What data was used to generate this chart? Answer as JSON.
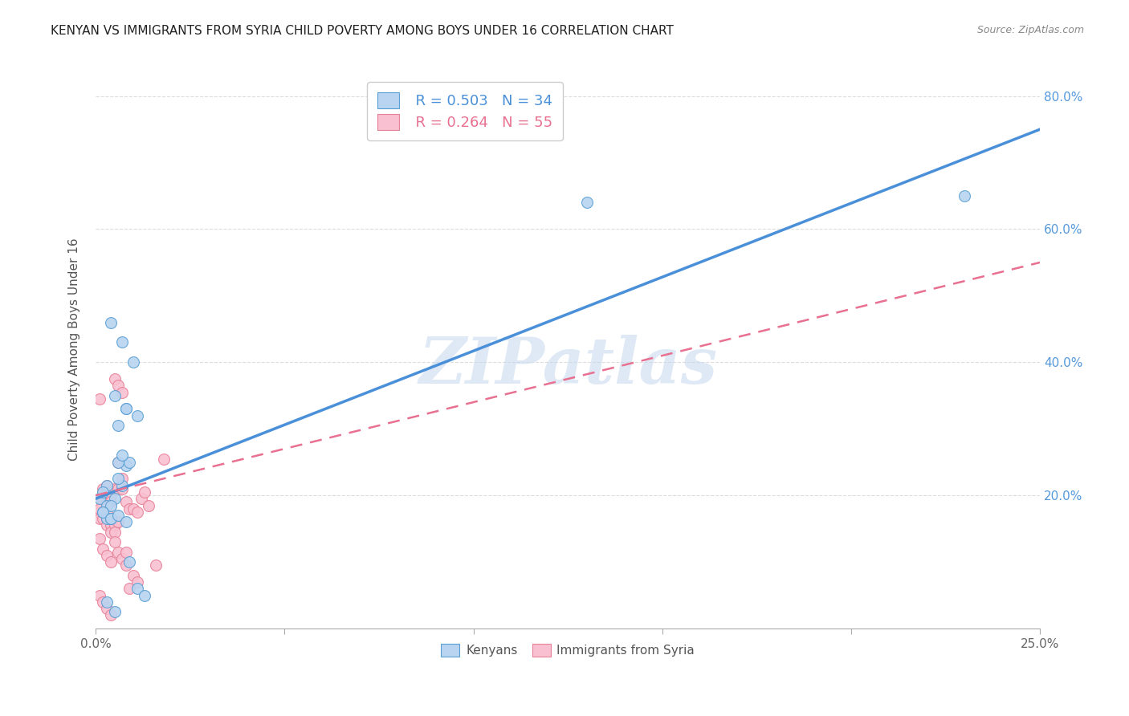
{
  "title": "KENYAN VS IMMIGRANTS FROM SYRIA CHILD POVERTY AMONG BOYS UNDER 16 CORRELATION CHART",
  "source": "Source: ZipAtlas.com",
  "ylabel": "Child Poverty Among Boys Under 16",
  "xlim": [
    0.0,
    0.25
  ],
  "ylim": [
    0.0,
    0.84
  ],
  "xtick_vals": [
    0.0,
    0.05,
    0.1,
    0.15,
    0.2,
    0.25
  ],
  "xtick_labels": [
    "0.0%",
    "",
    "",
    "",
    "",
    "25.0%"
  ],
  "ytick_vals": [
    0.2,
    0.4,
    0.6,
    0.8
  ],
  "ytick_labels": [
    "20.0%",
    "40.0%",
    "60.0%",
    "80.0%"
  ],
  "kenyan_R": 0.503,
  "kenyan_N": 34,
  "syria_R": 0.264,
  "syria_N": 55,
  "kenyan_scatter_color": "#b8d4f0",
  "kenyan_edge_color": "#5a9fd4",
  "syria_scatter_color": "#f8c0d0",
  "syria_edge_color": "#e88098",
  "kenya_line_color": "#4a90d9",
  "syria_line_color": "#e87090",
  "watermark": "ZIPatlas",
  "watermark_color": "#c5d8f0",
  "background_color": "#ffffff",
  "grid_color": "#dddddd",
  "kenya_line_x0": 0.0,
  "kenya_line_y0": 0.195,
  "kenya_line_x1": 0.25,
  "kenya_line_y1": 0.75,
  "syria_line_x0": 0.0,
  "syria_line_y0": 0.2,
  "syria_line_x1": 0.25,
  "syria_line_y1": 0.55,
  "kenyan_x": [
    0.001,
    0.005,
    0.007,
    0.003,
    0.004,
    0.006,
    0.008,
    0.002,
    0.003,
    0.006,
    0.008,
    0.01,
    0.004,
    0.005,
    0.007,
    0.003,
    0.009,
    0.011,
    0.002,
    0.004,
    0.006,
    0.007,
    0.008,
    0.003,
    0.005,
    0.009,
    0.011,
    0.013,
    0.002,
    0.004,
    0.006,
    0.008,
    0.23,
    0.13
  ],
  "kenyan_y": [
    0.195,
    0.195,
    0.215,
    0.185,
    0.185,
    0.225,
    0.245,
    0.175,
    0.165,
    0.305,
    0.33,
    0.4,
    0.46,
    0.35,
    0.43,
    0.215,
    0.25,
    0.32,
    0.175,
    0.165,
    0.25,
    0.26,
    0.33,
    0.04,
    0.025,
    0.1,
    0.06,
    0.05,
    0.205,
    0.165,
    0.17,
    0.16,
    0.65,
    0.64
  ],
  "syria_x": [
    0.001,
    0.001,
    0.001,
    0.001,
    0.002,
    0.002,
    0.002,
    0.002,
    0.002,
    0.003,
    0.003,
    0.003,
    0.003,
    0.003,
    0.004,
    0.004,
    0.004,
    0.004,
    0.005,
    0.005,
    0.005,
    0.006,
    0.006,
    0.006,
    0.007,
    0.007,
    0.007,
    0.008,
    0.008,
    0.008,
    0.009,
    0.009,
    0.01,
    0.01,
    0.011,
    0.011,
    0.012,
    0.013,
    0.014,
    0.001,
    0.002,
    0.003,
    0.004,
    0.005,
    0.006,
    0.001,
    0.002,
    0.003,
    0.004,
    0.005,
    0.006,
    0.007,
    0.016,
    0.018,
    0.001
  ],
  "syria_y": [
    0.195,
    0.175,
    0.165,
    0.345,
    0.195,
    0.185,
    0.175,
    0.165,
    0.21,
    0.215,
    0.205,
    0.175,
    0.165,
    0.155,
    0.2,
    0.19,
    0.155,
    0.145,
    0.21,
    0.155,
    0.145,
    0.25,
    0.21,
    0.115,
    0.225,
    0.21,
    0.105,
    0.19,
    0.115,
    0.095,
    0.18,
    0.06,
    0.18,
    0.08,
    0.175,
    0.07,
    0.195,
    0.205,
    0.185,
    0.135,
    0.12,
    0.11,
    0.1,
    0.13,
    0.16,
    0.05,
    0.04,
    0.03,
    0.02,
    0.375,
    0.365,
    0.355,
    0.095,
    0.255,
    0.18
  ]
}
